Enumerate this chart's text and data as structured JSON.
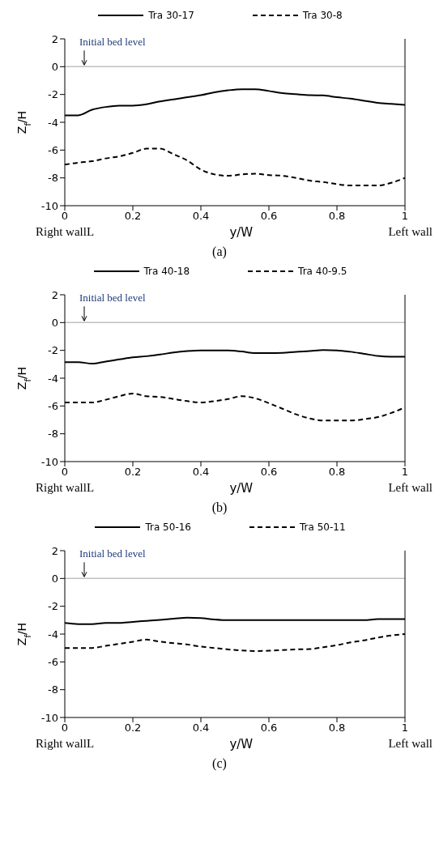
{
  "chart_data": [
    {
      "type": "line",
      "title": "(a)",
      "xlabel": "y/W",
      "ylabel": "Z$_{f}$/H",
      "legend": "top",
      "grid": false,
      "marker": "none",
      "xlim": [
        0,
        1
      ],
      "xticks": [
        0,
        0.2,
        0.4,
        0.6,
        0.8,
        1
      ],
      "ylim": [
        -10,
        2
      ],
      "yticks": [
        -10,
        -8,
        -6,
        -4,
        -2,
        0,
        2
      ],
      "ref_lines": [
        {
          "axis": "y",
          "value": 0,
          "color": "#c0c0c0",
          "label": "Initial bed level"
        }
      ],
      "annotations": [
        "Right wallL",
        "Left wall"
      ],
      "x": [
        0,
        0.04,
        0.08,
        0.12,
        0.16,
        0.2,
        0.24,
        0.28,
        0.32,
        0.36,
        0.4,
        0.44,
        0.48,
        0.52,
        0.56,
        0.6,
        0.64,
        0.68,
        0.72,
        0.76,
        0.8,
        0.84,
        0.88,
        0.92,
        0.96,
        1
      ],
      "series": [
        {
          "name": "Tra 30-17",
          "color": "#000000",
          "line_style": "solid",
          "values": [
            -3.5,
            -3.5,
            -3.1,
            -2.9,
            -2.8,
            -2.8,
            -2.7,
            -2.5,
            -2.35,
            -2.2,
            -2.05,
            -1.85,
            -1.7,
            -1.62,
            -1.62,
            -1.75,
            -1.9,
            -1.98,
            -2.05,
            -2.07,
            -2.2,
            -2.3,
            -2.45,
            -2.6,
            -2.68,
            -2.75
          ]
        },
        {
          "name": "Tra 30-8",
          "color": "#000000",
          "line_style": "dashed",
          "values": [
            -7.05,
            -6.9,
            -6.8,
            -6.6,
            -6.45,
            -6.2,
            -5.9,
            -5.9,
            -6.3,
            -6.75,
            -7.4,
            -7.75,
            -7.85,
            -7.75,
            -7.7,
            -7.8,
            -7.85,
            -8.0,
            -8.2,
            -8.3,
            -8.45,
            -8.55,
            -8.55,
            -8.55,
            -8.35,
            -8.0
          ]
        }
      ]
    },
    {
      "type": "line",
      "title": "(b)",
      "xlabel": "y/W",
      "ylabel": "Z$_{f}$/H",
      "legend": "top",
      "grid": false,
      "marker": "none",
      "xlim": [
        0,
        1
      ],
      "xticks": [
        0,
        0.2,
        0.4,
        0.6,
        0.8,
        1
      ],
      "ylim": [
        -10,
        2
      ],
      "yticks": [
        -10,
        -8,
        -6,
        -4,
        -2,
        0,
        2
      ],
      "ref_lines": [
        {
          "axis": "y",
          "value": 0,
          "color": "#c0c0c0",
          "label": "Initial bed level"
        }
      ],
      "annotations": [
        "Right wallL",
        "Left wall"
      ],
      "x": [
        0,
        0.04,
        0.08,
        0.12,
        0.16,
        0.2,
        0.24,
        0.28,
        0.32,
        0.36,
        0.4,
        0.44,
        0.48,
        0.52,
        0.56,
        0.6,
        0.64,
        0.68,
        0.72,
        0.76,
        0.8,
        0.84,
        0.88,
        0.92,
        0.96,
        1
      ],
      "series": [
        {
          "name": "Tra 40-18",
          "color": "#000000",
          "line_style": "solid",
          "values": [
            -2.85,
            -2.85,
            -2.95,
            -2.8,
            -2.65,
            -2.5,
            -2.42,
            -2.3,
            -2.15,
            -2.05,
            -2.0,
            -2.0,
            -2.0,
            -2.08,
            -2.2,
            -2.2,
            -2.18,
            -2.1,
            -2.05,
            -1.98,
            -2.0,
            -2.1,
            -2.25,
            -2.4,
            -2.45,
            -2.45
          ]
        },
        {
          "name": "Tra 40-9.5",
          "color": "#000000",
          "line_style": "dashed",
          "values": [
            -5.75,
            -5.75,
            -5.75,
            -5.55,
            -5.3,
            -5.1,
            -5.3,
            -5.35,
            -5.5,
            -5.65,
            -5.75,
            -5.65,
            -5.5,
            -5.3,
            -5.45,
            -5.8,
            -6.2,
            -6.6,
            -6.9,
            -7.05,
            -7.05,
            -7.05,
            -6.95,
            -6.8,
            -6.5,
            -6.1
          ]
        }
      ]
    },
    {
      "type": "line",
      "title": "(c)",
      "xlabel": "y/W",
      "ylabel": "Z$_{f}$/H",
      "legend": "top",
      "grid": false,
      "marker": "none",
      "xlim": [
        0,
        1
      ],
      "xticks": [
        0,
        0.2,
        0.4,
        0.6,
        0.8,
        1
      ],
      "ylim": [
        -10,
        2
      ],
      "yticks": [
        -10,
        -8,
        -6,
        -4,
        -2,
        0,
        2
      ],
      "ref_lines": [
        {
          "axis": "y",
          "value": 0,
          "color": "#c0c0c0",
          "label": "Initial bed level"
        }
      ],
      "annotations": [
        "Right wallL",
        "Left wall"
      ],
      "x": [
        0,
        0.04,
        0.08,
        0.12,
        0.16,
        0.2,
        0.24,
        0.28,
        0.32,
        0.36,
        0.4,
        0.44,
        0.48,
        0.52,
        0.56,
        0.6,
        0.64,
        0.68,
        0.72,
        0.76,
        0.8,
        0.84,
        0.88,
        0.92,
        0.96,
        1
      ],
      "series": [
        {
          "name": "Tra 50-16",
          "color": "#000000",
          "line_style": "solid",
          "values": [
            -3.2,
            -3.28,
            -3.28,
            -3.2,
            -3.2,
            -3.12,
            -3.05,
            -2.98,
            -2.9,
            -2.82,
            -2.85,
            -2.95,
            -3.0,
            -3.0,
            -3.0,
            -3.0,
            -3.0,
            -3.0,
            -3.0,
            -3.0,
            -3.0,
            -3.0,
            -3.0,
            -2.92,
            -2.92,
            -2.92
          ]
        },
        {
          "name": "Tra 50-11",
          "color": "#000000",
          "line_style": "dashed",
          "values": [
            -5.0,
            -5.0,
            -5.0,
            -4.85,
            -4.7,
            -4.55,
            -4.4,
            -4.55,
            -4.65,
            -4.75,
            -4.9,
            -5.0,
            -5.1,
            -5.18,
            -5.22,
            -5.2,
            -5.15,
            -5.1,
            -5.08,
            -4.95,
            -4.8,
            -4.6,
            -4.45,
            -4.25,
            -4.1,
            -4.0
          ]
        }
      ]
    }
  ]
}
